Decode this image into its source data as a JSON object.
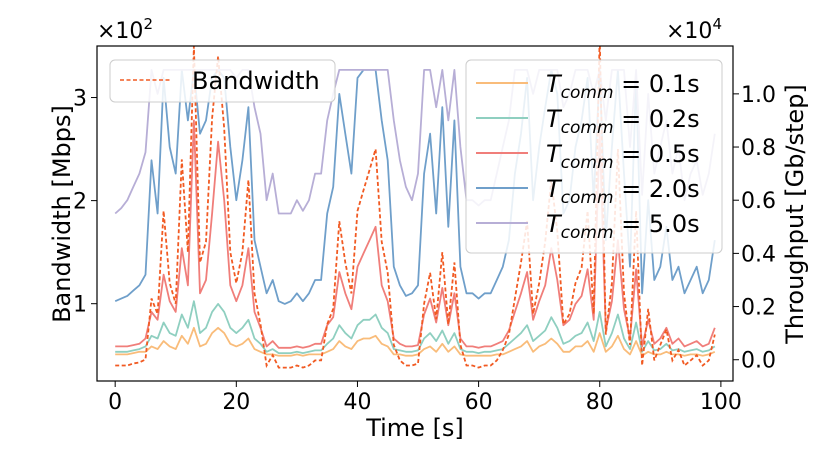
{
  "chart_data": {
    "type": "line",
    "xlabel": "Time [s]",
    "ylabel_left": "Bandwidth [Mbps]",
    "ylabel_right": "Throughput [Gb/step]",
    "multiplier_left": "×10",
    "multiplier_left_exp": "2",
    "multiplier_right": "×10",
    "multiplier_right_exp": "4",
    "xlim": [
      -3,
      102
    ],
    "ylim_left": [
      0.25,
      3.5
    ],
    "ylim_right": [
      -0.08,
      1.18
    ],
    "x_ticks": [
      0,
      20,
      40,
      60,
      80,
      100
    ],
    "x_tick_labels": [
      "0",
      "20",
      "40",
      "60",
      "80",
      "100"
    ],
    "y_left_ticks": [
      1,
      2,
      3
    ],
    "y_left_tick_labels": [
      "1",
      "2",
      "3"
    ],
    "y_right_ticks": [
      0.0,
      0.2,
      0.4,
      0.6,
      0.8,
      1.0
    ],
    "y_right_tick_labels": [
      "0.0",
      "0.2",
      "0.4",
      "0.6",
      "0.8",
      "1.0"
    ],
    "bandwidth": {
      "name": "Bandwidth",
      "color": "#f15a22",
      "x": [
        0,
        1,
        2,
        3,
        4,
        5,
        6,
        7,
        8,
        9,
        10,
        11,
        12,
        13,
        14,
        15,
        16,
        17,
        18,
        19,
        20,
        21,
        22,
        23,
        24,
        25,
        26,
        27,
        28,
        29,
        30,
        31,
        32,
        33,
        34,
        35,
        36,
        37,
        38,
        39,
        40,
        41,
        42,
        43,
        44,
        45,
        46,
        47,
        48,
        49,
        50,
        51,
        52,
        53,
        54,
        55,
        56,
        57,
        58,
        59,
        60,
        61,
        62,
        63,
        64,
        65,
        66,
        67,
        68,
        69,
        70,
        71,
        72,
        73,
        74,
        75,
        76,
        77,
        78,
        79,
        80,
        81,
        82,
        83,
        84,
        85,
        86,
        87,
        88,
        89,
        90,
        91,
        92,
        93,
        94,
        95,
        96,
        97,
        98,
        99
      ],
      "values": [
        0.4,
        0.4,
        0.4,
        0.42,
        0.43,
        0.46,
        1.05,
        0.9,
        1.9,
        1.2,
        1.0,
        2.4,
        1.5,
        3.5,
        1.4,
        1.6,
        2.8,
        3.4,
        2.7,
        1.5,
        1.2,
        1.5,
        2.2,
        1.1,
        0.8,
        0.4,
        0.5,
        0.38,
        0.38,
        0.38,
        0.4,
        0.38,
        0.4,
        0.45,
        0.45,
        0.8,
        0.95,
        1.8,
        1.4,
        1.1,
        1.9,
        2.1,
        2.3,
        2.5,
        1.6,
        1.3,
        0.6,
        0.45,
        0.4,
        0.4,
        0.42,
        1.0,
        1.3,
        0.85,
        1.5,
        0.8,
        1.4,
        0.6,
        0.4,
        0.4,
        0.38,
        0.4,
        0.4,
        0.45,
        0.55,
        0.7,
        1.05,
        1.4,
        1.8,
        0.9,
        1.2,
        1.6,
        2.2,
        1.7,
        0.8,
        0.9,
        1.2,
        1.35,
        1.9,
        0.9,
        3.6,
        0.7,
        1.2,
        2.5,
        1.1,
        0.6,
        1.9,
        0.4,
        0.95,
        0.45,
        0.6,
        0.75,
        0.45,
        0.55,
        0.4,
        0.45,
        0.5,
        0.4,
        0.45,
        0.7
      ]
    },
    "series": [
      {
        "name": "T_comm = 0.1s",
        "label_main": "T",
        "label_sub": "comm",
        "label_tail": " = 0.1s",
        "color": "#f9bc7a",
        "values": [
          0.02,
          0.02,
          0.02,
          0.025,
          0.03,
          0.03,
          0.05,
          0.04,
          0.07,
          0.05,
          0.04,
          0.09,
          0.06,
          0.12,
          0.05,
          0.06,
          0.1,
          0.12,
          0.1,
          0.06,
          0.05,
          0.06,
          0.08,
          0.04,
          0.03,
          0.02,
          0.02,
          0.015,
          0.015,
          0.015,
          0.02,
          0.015,
          0.02,
          0.02,
          0.02,
          0.03,
          0.04,
          0.07,
          0.05,
          0.04,
          0.07,
          0.08,
          0.08,
          0.09,
          0.06,
          0.05,
          0.02,
          0.02,
          0.015,
          0.015,
          0.02,
          0.04,
          0.05,
          0.03,
          0.06,
          0.03,
          0.05,
          0.02,
          0.015,
          0.015,
          0.015,
          0.015,
          0.015,
          0.02,
          0.02,
          0.03,
          0.04,
          0.05,
          0.07,
          0.03,
          0.05,
          0.06,
          0.08,
          0.06,
          0.03,
          0.03,
          0.05,
          0.05,
          0.07,
          0.03,
          0.1,
          0.03,
          0.05,
          0.09,
          0.04,
          0.02,
          0.07,
          0.015,
          0.03,
          0.02,
          0.02,
          0.03,
          0.02,
          0.02,
          0.015,
          0.02,
          0.02,
          0.015,
          0.02,
          0.03
        ]
      },
      {
        "name": "T_comm = 0.2s",
        "label_main": "T",
        "label_sub": "comm",
        "label_tail": " = 0.2s",
        "color": "#8fcfc0",
        "values": [
          0.03,
          0.03,
          0.03,
          0.035,
          0.04,
          0.05,
          0.09,
          0.08,
          0.14,
          0.1,
          0.09,
          0.17,
          0.12,
          0.22,
          0.1,
          0.12,
          0.18,
          0.21,
          0.18,
          0.12,
          0.1,
          0.12,
          0.15,
          0.08,
          0.06,
          0.03,
          0.04,
          0.025,
          0.025,
          0.025,
          0.03,
          0.025,
          0.03,
          0.035,
          0.035,
          0.06,
          0.08,
          0.13,
          0.1,
          0.08,
          0.13,
          0.15,
          0.15,
          0.17,
          0.12,
          0.1,
          0.04,
          0.035,
          0.03,
          0.03,
          0.035,
          0.08,
          0.1,
          0.07,
          0.11,
          0.06,
          0.1,
          0.04,
          0.03,
          0.03,
          0.025,
          0.03,
          0.03,
          0.035,
          0.04,
          0.06,
          0.08,
          0.1,
          0.13,
          0.07,
          0.09,
          0.11,
          0.16,
          0.12,
          0.06,
          0.07,
          0.09,
          0.1,
          0.14,
          0.07,
          0.18,
          0.05,
          0.1,
          0.17,
          0.08,
          0.04,
          0.14,
          0.03,
          0.07,
          0.035,
          0.04,
          0.06,
          0.035,
          0.04,
          0.03,
          0.035,
          0.04,
          0.03,
          0.035,
          0.05
        ]
      },
      {
        "name": "T_comm = 0.5s",
        "label_main": "T",
        "label_sub": "comm",
        "label_tail": " = 0.5s",
        "color": "#f07e7a",
        "values": [
          0.05,
          0.05,
          0.05,
          0.055,
          0.06,
          0.08,
          0.18,
          0.15,
          0.32,
          0.22,
          0.18,
          0.42,
          0.28,
          0.9,
          0.25,
          0.3,
          0.55,
          0.82,
          0.6,
          0.28,
          0.22,
          0.28,
          0.42,
          0.18,
          0.12,
          0.05,
          0.07,
          0.045,
          0.045,
          0.045,
          0.05,
          0.045,
          0.05,
          0.06,
          0.06,
          0.13,
          0.16,
          0.33,
          0.25,
          0.19,
          0.35,
          0.4,
          0.45,
          0.5,
          0.28,
          0.22,
          0.08,
          0.06,
          0.05,
          0.05,
          0.055,
          0.17,
          0.23,
          0.14,
          0.27,
          0.13,
          0.25,
          0.08,
          0.05,
          0.05,
          0.045,
          0.05,
          0.05,
          0.06,
          0.07,
          0.11,
          0.18,
          0.25,
          0.33,
          0.15,
          0.22,
          0.28,
          0.42,
          0.3,
          0.13,
          0.15,
          0.21,
          0.24,
          0.34,
          0.15,
          0.85,
          0.11,
          0.22,
          0.45,
          0.19,
          0.08,
          0.34,
          0.05,
          0.15,
          0.06,
          0.08,
          0.12,
          0.06,
          0.08,
          0.05,
          0.06,
          0.07,
          0.05,
          0.06,
          0.12
        ]
      },
      {
        "name": "T_comm = 2.0s",
        "label_main": "T",
        "label_sub": "comm",
        "label_tail": " = 2.0s",
        "color": "#6f9fca",
        "values": [
          0.22,
          0.23,
          0.24,
          0.26,
          0.28,
          0.32,
          0.75,
          0.55,
          1.06,
          0.8,
          0.7,
          1.09,
          0.9,
          1.09,
          0.85,
          0.9,
          1.06,
          1.09,
          1.06,
          0.8,
          0.6,
          0.75,
          0.95,
          0.45,
          0.35,
          0.25,
          0.3,
          0.22,
          0.21,
          0.22,
          0.25,
          0.22,
          0.25,
          0.3,
          0.3,
          0.55,
          0.65,
          1.0,
          0.85,
          0.7,
          1.06,
          1.09,
          1.09,
          1.09,
          0.9,
          0.75,
          0.35,
          0.28,
          0.24,
          0.25,
          0.28,
          0.7,
          0.85,
          0.55,
          0.95,
          0.5,
          0.9,
          0.35,
          0.25,
          0.25,
          0.23,
          0.25,
          0.25,
          0.3,
          0.35,
          0.45,
          0.7,
          0.85,
          1.06,
          0.6,
          0.8,
          0.95,
          1.09,
          1.0,
          0.55,
          0.6,
          0.8,
          0.9,
          1.06,
          0.6,
          1.09,
          0.45,
          0.8,
          1.09,
          0.7,
          0.35,
          1.06,
          0.25,
          0.6,
          0.3,
          0.35,
          0.5,
          0.3,
          0.35,
          0.25,
          0.3,
          0.35,
          0.25,
          0.3,
          0.45
        ]
      },
      {
        "name": "T_comm = 5.0s",
        "label_main": "T",
        "label_sub": "comm",
        "label_tail": " = 5.0s",
        "color": "#b7aed6",
        "values": [
          0.55,
          0.57,
          0.6,
          0.65,
          0.7,
          0.78,
          1.09,
          1.0,
          1.09,
          1.09,
          1.09,
          1.09,
          1.09,
          1.09,
          1.09,
          1.09,
          1.09,
          1.09,
          1.09,
          1.09,
          1.06,
          1.09,
          1.09,
          0.95,
          0.85,
          0.6,
          0.7,
          0.55,
          0.55,
          0.55,
          0.6,
          0.56,
          0.6,
          0.7,
          0.7,
          0.9,
          1.0,
          1.09,
          1.09,
          1.09,
          1.09,
          1.09,
          1.09,
          1.09,
          1.09,
          1.09,
          0.9,
          0.75,
          0.65,
          0.6,
          0.7,
          1.09,
          1.09,
          0.95,
          1.09,
          0.9,
          1.09,
          0.8,
          0.6,
          0.6,
          0.58,
          0.6,
          0.6,
          0.7,
          0.8,
          0.9,
          1.09,
          1.09,
          1.09,
          1.0,
          1.09,
          1.09,
          1.09,
          1.09,
          0.95,
          1.0,
          1.09,
          1.09,
          1.09,
          1.0,
          1.09,
          0.9,
          1.09,
          1.09,
          1.09,
          0.8,
          1.09,
          0.62,
          1.0,
          0.7,
          0.8,
          0.9,
          0.7,
          0.8,
          0.6,
          0.7,
          0.75,
          0.62,
          0.7,
          0.85
        ]
      }
    ],
    "legend_left_position": "upper-left",
    "legend_right_position": "upper-right"
  }
}
